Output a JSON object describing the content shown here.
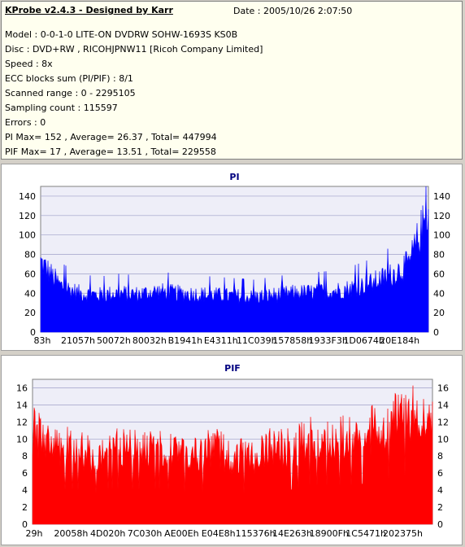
{
  "info": {
    "title": "KProbe v2.4.3 - Designed by Karr",
    "date": "Date : 2005/10/26 2:07:50",
    "lines": [
      "Model : 0-0-1-0 LITE-ON DVDRW SOHW-1693S KS0B",
      "Disc : DVD+RW , RICOHJPNW11 [Ricoh Company Limited]",
      "Speed : 8x",
      "ECC blocks sum (PI/PIF) : 8/1",
      "Scanned range : 0 - 2295105",
      "Sampling count : 115597",
      "Errors : 0",
      "PI Max= 152 , Average= 26.37 , Total= 447994",
      "PIF Max= 17 , Average= 13.51 , Total= 229558"
    ]
  },
  "colors": {
    "pi": "#0000ff",
    "pif": "#ff0000",
    "title": "#000080",
    "grid": "#9fa0c8",
    "plot_bg": "#eeeef8"
  },
  "chart_data": [
    {
      "type": "area",
      "title": "PI",
      "ylim": [
        0,
        150
      ],
      "yticks": [
        0,
        20,
        40,
        60,
        80,
        100,
        120,
        140
      ],
      "xticks": [
        "83h",
        "21057h",
        "50072h",
        "80032h",
        "B1941h",
        "E4311h",
        "11C039h",
        "157858h",
        "1933F3h",
        "1D0674h",
        "20E184h"
      ],
      "x": [
        0,
        5,
        10,
        15,
        20,
        25,
        30,
        35,
        40,
        45,
        50,
        55,
        60,
        65,
        70,
        75,
        80,
        85,
        90,
        95,
        100
      ],
      "values": [
        72,
        48,
        40,
        38,
        40,
        39,
        42,
        40,
        39,
        38,
        37,
        36,
        38,
        40,
        41,
        42,
        45,
        50,
        58,
        70,
        125
      ],
      "grid": true,
      "legend": "none"
    },
    {
      "type": "area",
      "title": "PIF",
      "ylim": [
        0,
        17
      ],
      "yticks": [
        0,
        2,
        4,
        6,
        8,
        10,
        12,
        14,
        16
      ],
      "xticks": [
        "29h",
        "20058h",
        "4D020h",
        "7C030h",
        "AE00Eh",
        "E04E8h",
        "115376h",
        "14E263h",
        "18900Fh",
        "1C5471h",
        "202375h"
      ],
      "x": [
        0,
        5,
        10,
        15,
        20,
        25,
        30,
        35,
        40,
        45,
        50,
        55,
        60,
        65,
        70,
        75,
        80,
        85,
        90,
        95,
        100
      ],
      "values": [
        11,
        9,
        9,
        8,
        9,
        9,
        9,
        9,
        8,
        9,
        8,
        8,
        9,
        9,
        10,
        10,
        10,
        11,
        12,
        13,
        12
      ],
      "grid": true,
      "legend": "none"
    }
  ]
}
